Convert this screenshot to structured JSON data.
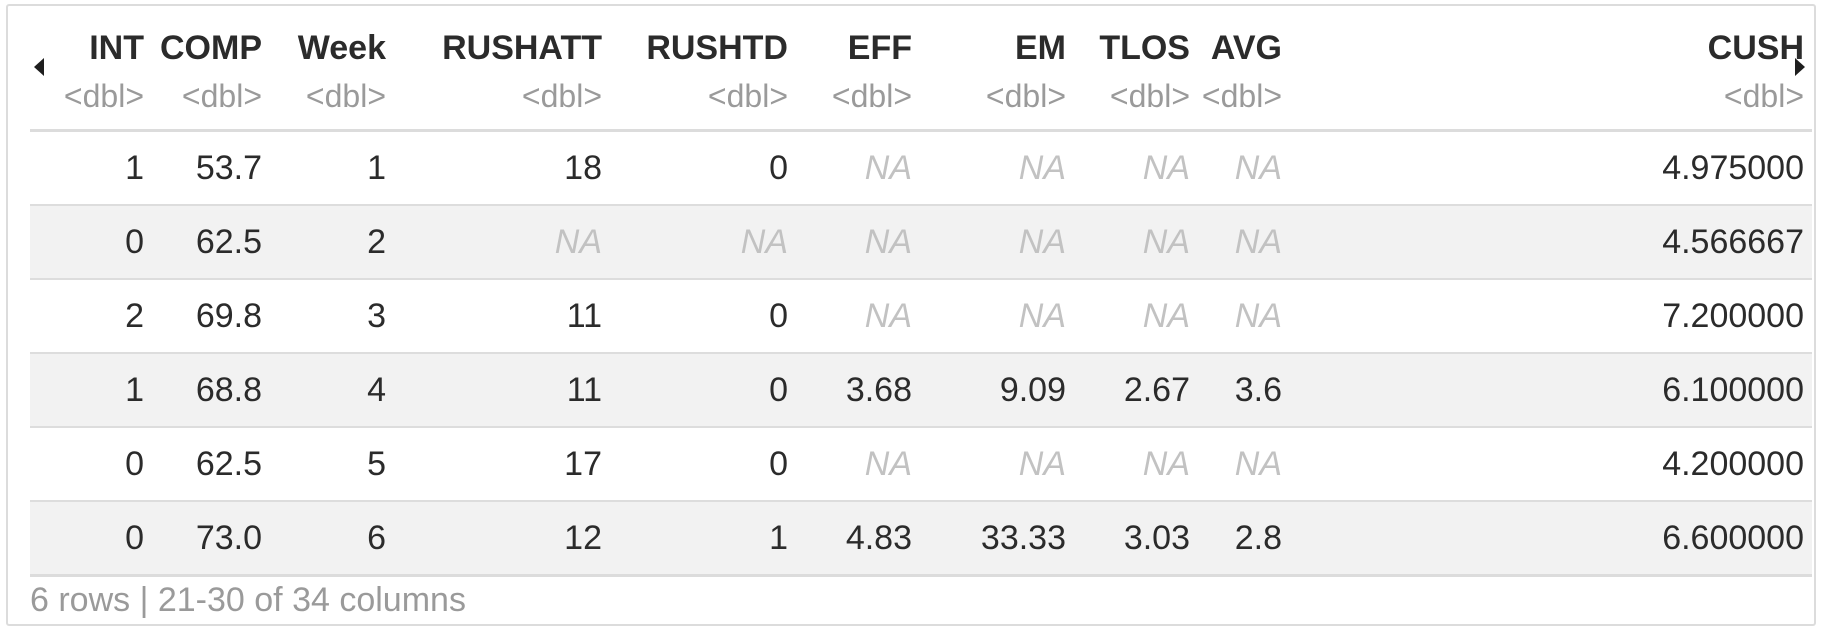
{
  "nav": {
    "prev_icon": "caret-left-icon",
    "next_icon": "caret-right-icon"
  },
  "table": {
    "columns": [
      {
        "name": "INT",
        "type": "<dbl>"
      },
      {
        "name": "COMP",
        "type": "<dbl>"
      },
      {
        "name": "Week",
        "type": "<dbl>"
      },
      {
        "name": "RUSHATT",
        "type": "<dbl>"
      },
      {
        "name": "RUSHTD",
        "type": "<dbl>"
      },
      {
        "name": "EFF",
        "type": "<dbl>"
      },
      {
        "name": "EM",
        "type": "<dbl>"
      },
      {
        "name": "TLOS",
        "type": "<dbl>"
      },
      {
        "name": "AVG",
        "type": "<dbl>"
      },
      {
        "name": "CUSH",
        "type": "<dbl>"
      }
    ],
    "rows": [
      [
        "1",
        "53.7",
        "1",
        "18",
        "0",
        "NA",
        "NA",
        "NA",
        "NA",
        "4.975000"
      ],
      [
        "0",
        "62.5",
        "2",
        "NA",
        "NA",
        "NA",
        "NA",
        "NA",
        "NA",
        "4.566667"
      ],
      [
        "2",
        "69.8",
        "3",
        "11",
        "0",
        "NA",
        "NA",
        "NA",
        "NA",
        "7.200000"
      ],
      [
        "1",
        "68.8",
        "4",
        "11",
        "0",
        "3.68",
        "9.09",
        "2.67",
        "3.6",
        "6.100000"
      ],
      [
        "0",
        "62.5",
        "5",
        "17",
        "0",
        "NA",
        "NA",
        "NA",
        "NA",
        "4.200000"
      ],
      [
        "0",
        "73.0",
        "6",
        "12",
        "1",
        "4.83",
        "33.33",
        "3.03",
        "2.8",
        "6.600000"
      ]
    ],
    "na_color": "#c2c2c2",
    "stripe_color": "#f2f2f2"
  },
  "footer": {
    "summary": "6 rows | 21-30 of 34 columns"
  }
}
